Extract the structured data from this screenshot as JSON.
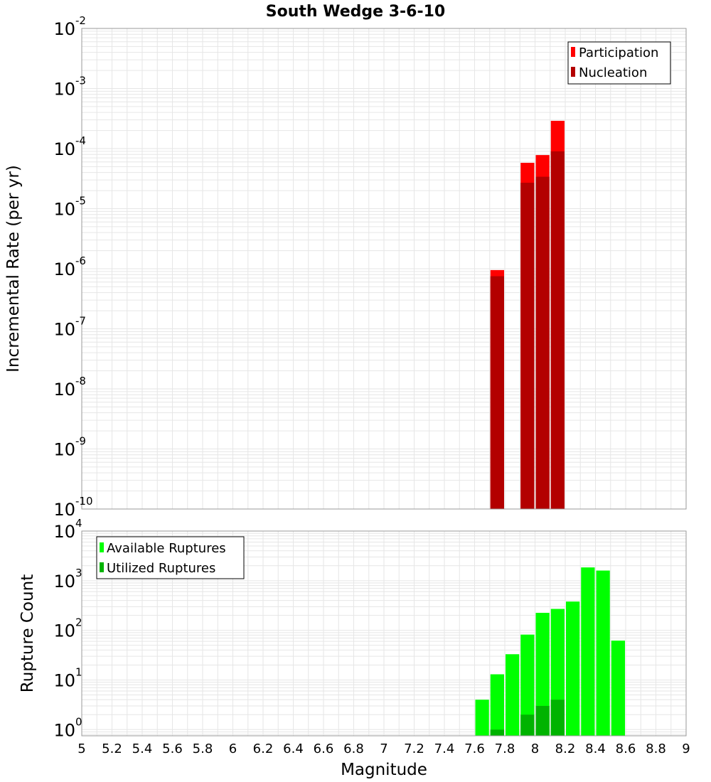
{
  "title": "South Wedge 3-6-10",
  "colors": {
    "participation": "#ff0000",
    "nucleation": "#b30000",
    "available": "#00ff00",
    "utilized": "#00b300",
    "grid": "#e6e6e6",
    "frame": "#999999"
  },
  "chart_data": [
    {
      "type": "bar",
      "scale": "log",
      "ylabel": "Incremental Rate (per yr)",
      "ylim": [
        1e-10,
        0.01
      ],
      "xlim": [
        5,
        9
      ],
      "grid": true,
      "legend_position": "top-right",
      "series": [
        {
          "name": "Participation",
          "x": [
            7.75,
            7.95,
            8.05,
            8.15
          ],
          "values": [
            9.5e-07,
            5.8e-05,
            7.8e-05,
            0.00029
          ]
        },
        {
          "name": "Nucleation",
          "x": [
            7.75,
            7.95,
            8.05,
            8.15
          ],
          "values": [
            7.5e-07,
            2.7e-05,
            3.4e-05,
            9e-05
          ]
        }
      ]
    },
    {
      "type": "bar",
      "scale": "log",
      "xlabel": "Magnitude",
      "ylabel": "Rupture Count",
      "ylim": [
        0.75,
        10000
      ],
      "xlim": [
        5,
        9
      ],
      "grid": true,
      "legend_position": "top-left",
      "series": [
        {
          "name": "Available Ruptures",
          "x": [
            7.65,
            7.75,
            7.85,
            7.95,
            8.05,
            8.15,
            8.25,
            8.35,
            8.45,
            8.55
          ],
          "values": [
            4,
            13,
            33,
            82,
            225,
            270,
            380,
            1850,
            1600,
            62
          ]
        },
        {
          "name": "Utilized Ruptures",
          "x": [
            7.75,
            7.95,
            8.05,
            8.15
          ],
          "values": [
            1,
            2,
            3,
            4
          ]
        }
      ]
    }
  ],
  "x_ticks": [
    "5",
    "5.2",
    "5.4",
    "5.6",
    "5.8",
    "6",
    "6.2",
    "6.4",
    "6.6",
    "6.8",
    "7",
    "7.2",
    "7.4",
    "7.6",
    "7.8",
    "8",
    "8.2",
    "8.4",
    "8.6",
    "8.8",
    "9"
  ],
  "top_y_ticks": [
    {
      "base": "10",
      "exp": "-2"
    },
    {
      "base": "10",
      "exp": "-3"
    },
    {
      "base": "10",
      "exp": "-4"
    },
    {
      "base": "10",
      "exp": "-5"
    },
    {
      "base": "10",
      "exp": "-6"
    },
    {
      "base": "10",
      "exp": "-7"
    },
    {
      "base": "10",
      "exp": "-8"
    },
    {
      "base": "10",
      "exp": "-9"
    },
    {
      "base": "10",
      "exp": "-10"
    }
  ],
  "bottom_y_ticks": [
    {
      "base": "10",
      "exp": "4"
    },
    {
      "base": "10",
      "exp": "3"
    },
    {
      "base": "10",
      "exp": "2"
    },
    {
      "base": "10",
      "exp": "1"
    },
    {
      "base": "10",
      "exp": "0"
    }
  ]
}
